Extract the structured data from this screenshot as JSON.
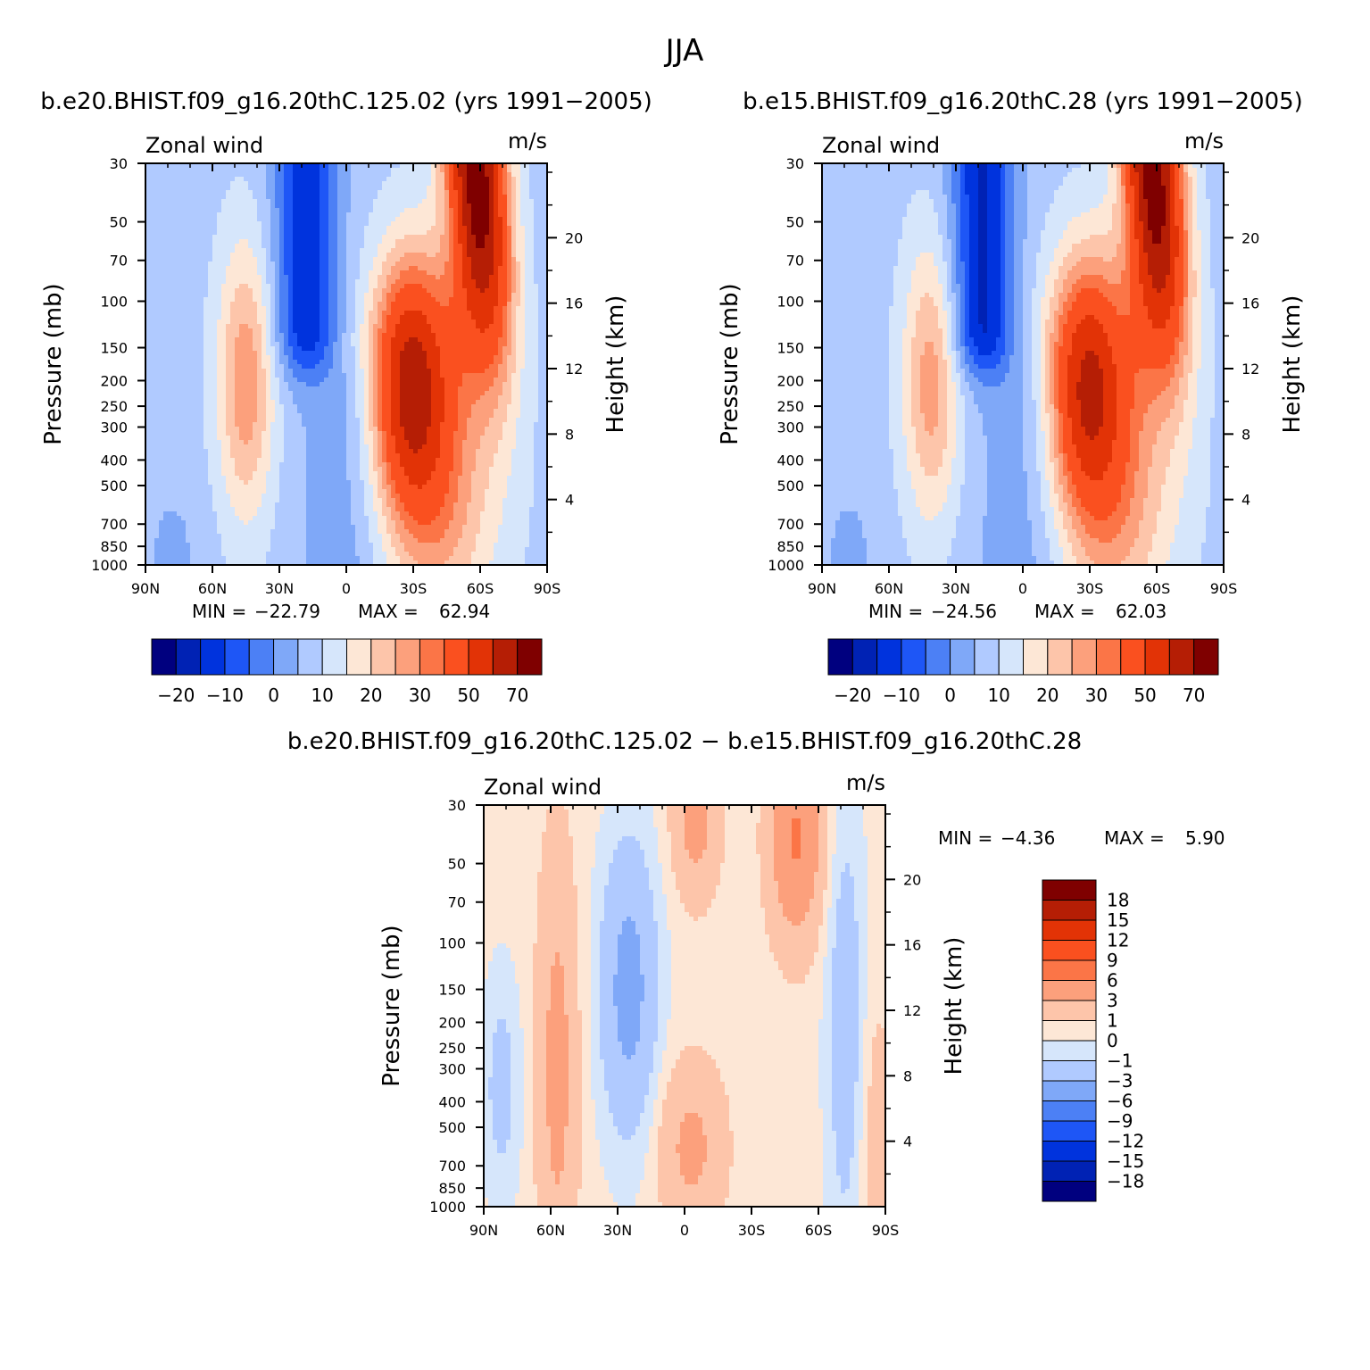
{
  "figure": {
    "title": "JJA"
  },
  "chart_data": [
    {
      "type": "heatmap",
      "panel_title": "b.e20.BHIST.f09_g16.20thC.125.02 (yrs 1991−2005)",
      "variable": "Zonal wind",
      "units": "m/s",
      "ylabel": "Pressure (mb)",
      "ylabel_right": "Height (km)",
      "x_ticks": [
        "90N",
        "60N",
        "30N",
        "0",
        "30S",
        "60S",
        "90S"
      ],
      "y_ticks": [
        "30",
        "50",
        "70",
        "100",
        "150",
        "200",
        "250",
        "300",
        "400",
        "500",
        "700",
        "850",
        "1000"
      ],
      "y_right_ticks": [
        "20",
        "16",
        "12",
        "8",
        "4"
      ],
      "min": "−22.79",
      "max": "62.94",
      "min_label": "MIN =",
      "max_label": "MAX =",
      "colorbar_labels": [
        "−20",
        "−10",
        "0",
        "10",
        "20",
        "30",
        "50",
        "70"
      ],
      "colors": [
        "#00007f",
        "#0022b4",
        "#0033dd",
        "#1e56f6",
        "#4c80f5",
        "#7fa8f8",
        "#b0caff",
        "#d6e6fb",
        "#fde7d6",
        "#fdc5aa",
        "#fca07c",
        "#fb7547",
        "#fa501f",
        "#e23306",
        "#b51e05",
        "#7f0000"
      ],
      "features": {
        "easterly_jet": {
          "lat": 18,
          "ptop": 30,
          "pbottom": 125,
          "peak": -22
        },
        "westerly_jet_n": {
          "lat": 45,
          "p": 200,
          "peak": 21
        },
        "westerly_jet_s": {
          "lat": -29,
          "p": 200,
          "peak": 50
        },
        "polar_night_jet": {
          "lat": -58,
          "p": 30,
          "peak": 62.9
        }
      }
    },
    {
      "type": "heatmap",
      "panel_title": "b.e15.BHIST.f09_g16.20thC.28 (yrs 1991−2005)",
      "variable": "Zonal wind",
      "units": "m/s",
      "ylabel": "Pressure (mb)",
      "ylabel_right": "Height (km)",
      "x_ticks": [
        "90N",
        "60N",
        "30N",
        "0",
        "30S",
        "60S",
        "90S"
      ],
      "y_ticks": [
        "30",
        "50",
        "70",
        "100",
        "150",
        "200",
        "250",
        "300",
        "400",
        "500",
        "700",
        "850",
        "1000"
      ],
      "y_right_ticks": [
        "20",
        "16",
        "12",
        "8",
        "4"
      ],
      "min": "−24.56",
      "max": "62.03",
      "min_label": "MIN =",
      "max_label": "MAX =",
      "colorbar_labels": [
        "−20",
        "−10",
        "0",
        "10",
        "20",
        "30",
        "50",
        "70"
      ],
      "colors": [
        "#00007f",
        "#0022b4",
        "#0033dd",
        "#1e56f6",
        "#4c80f5",
        "#7fa8f8",
        "#b0caff",
        "#d6e6fb",
        "#fde7d6",
        "#fdc5aa",
        "#fca07c",
        "#fb7547",
        "#fa501f",
        "#e23306",
        "#b51e05",
        "#7f0000"
      ],
      "features": {
        "easterly_jet": {
          "lat": 18,
          "ptop": 30,
          "pbottom": 125,
          "peak": -24
        },
        "westerly_jet_n": {
          "lat": 41,
          "p": 200,
          "peak": 20
        },
        "westerly_jet_s": {
          "lat": -29,
          "p": 200,
          "peak": 46
        },
        "polar_night_jet": {
          "lat": -58,
          "p": 30,
          "peak": 62
        }
      }
    },
    {
      "type": "heatmap",
      "panel_title": "b.e20.BHIST.f09_g16.20thC.125.02 − b.e15.BHIST.f09_g16.20thC.28",
      "variable": "Zonal wind",
      "units": "m/s",
      "ylabel": "Pressure (mb)",
      "ylabel_right": "Height (km)",
      "x_ticks": [
        "90N",
        "60N",
        "30N",
        "0",
        "30S",
        "60S",
        "90S"
      ],
      "y_ticks": [
        "30",
        "50",
        "70",
        "100",
        "150",
        "200",
        "250",
        "300",
        "400",
        "500",
        "700",
        "850",
        "1000"
      ],
      "y_right_ticks": [
        "20",
        "16",
        "12",
        "8",
        "4"
      ],
      "min": "−4.36",
      "max": "5.90",
      "min_label": "MIN =",
      "max_label": "MAX =",
      "colorbar_labels": [
        "18",
        "15",
        "12",
        "9",
        "6",
        "3",
        "1",
        "0",
        "−1",
        "−3",
        "−6",
        "−9",
        "−12",
        "−15",
        "−18"
      ],
      "colors": [
        "#7f0000",
        "#b51e05",
        "#e23306",
        "#fa501f",
        "#fb7547",
        "#fca07c",
        "#fdc5aa",
        "#fde7d6",
        "#d6e6fb",
        "#b0caff",
        "#7fa8f8",
        "#4c80f5",
        "#1e56f6",
        "#0033dd",
        "#0022b4",
        "#00007f"
      ],
      "features": {
        "positive_band_60n": {
          "lat": 57,
          "p": 300,
          "peak": 3.5
        },
        "negative_band_25n": {
          "lat": 25,
          "p": 150,
          "peak": -4.3
        },
        "positive_tropics_lower": {
          "lat": -3,
          "p": 600,
          "peak": 3.2
        },
        "positive_strat_10s": {
          "lat": -5,
          "p": 35,
          "peak": 3.5
        },
        "positive_strat_50s": {
          "lat": -50,
          "p": 40,
          "peak": 5.9
        }
      }
    }
  ]
}
